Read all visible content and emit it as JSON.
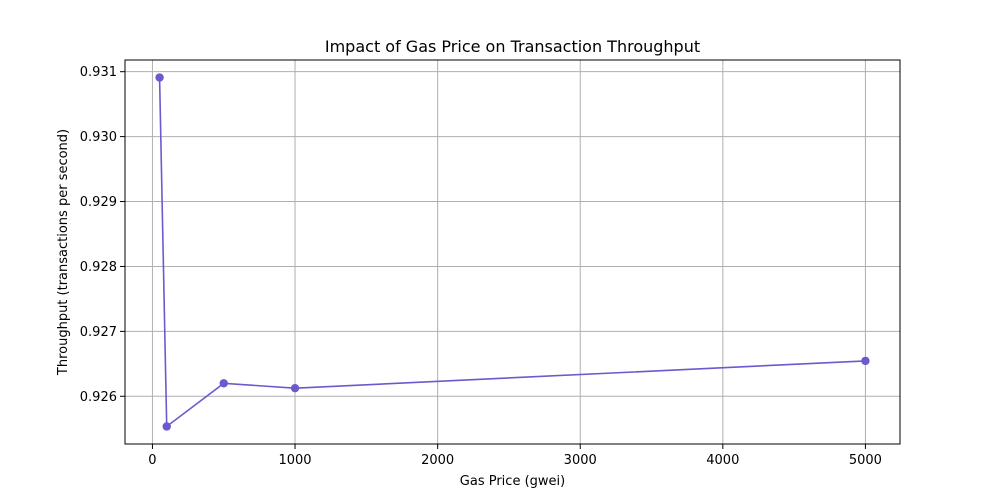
{
  "chart_data": {
    "type": "line",
    "title": "Impact of Gas Price on Transaction Throughput",
    "xlabel": "Gas Price (gwei)",
    "ylabel": "Throughput (transactions per second)",
    "x": [
      50,
      100,
      500,
      1000,
      5000
    ],
    "series": [
      {
        "values": [
          0.93091,
          0.925535,
          0.9262,
          0.926125,
          0.926545
        ],
        "color": "#6a5acd",
        "marker": "circle"
      }
    ],
    "xlim": [
      -192.5,
      5242.5
    ],
    "ylim": [
      0.925265,
      0.93118
    ],
    "xticks": [
      0,
      1000,
      2000,
      3000,
      4000,
      5000
    ],
    "xtick_labels": [
      "0",
      "1000",
      "2000",
      "3000",
      "4000",
      "5000"
    ],
    "yticks": [
      0.926,
      0.927,
      0.928,
      0.929,
      0.93,
      0.931
    ],
    "ytick_labels": [
      "0.926",
      "0.927",
      "0.928",
      "0.929",
      "0.930",
      "0.931"
    ],
    "grid": true,
    "legend": "none"
  }
}
